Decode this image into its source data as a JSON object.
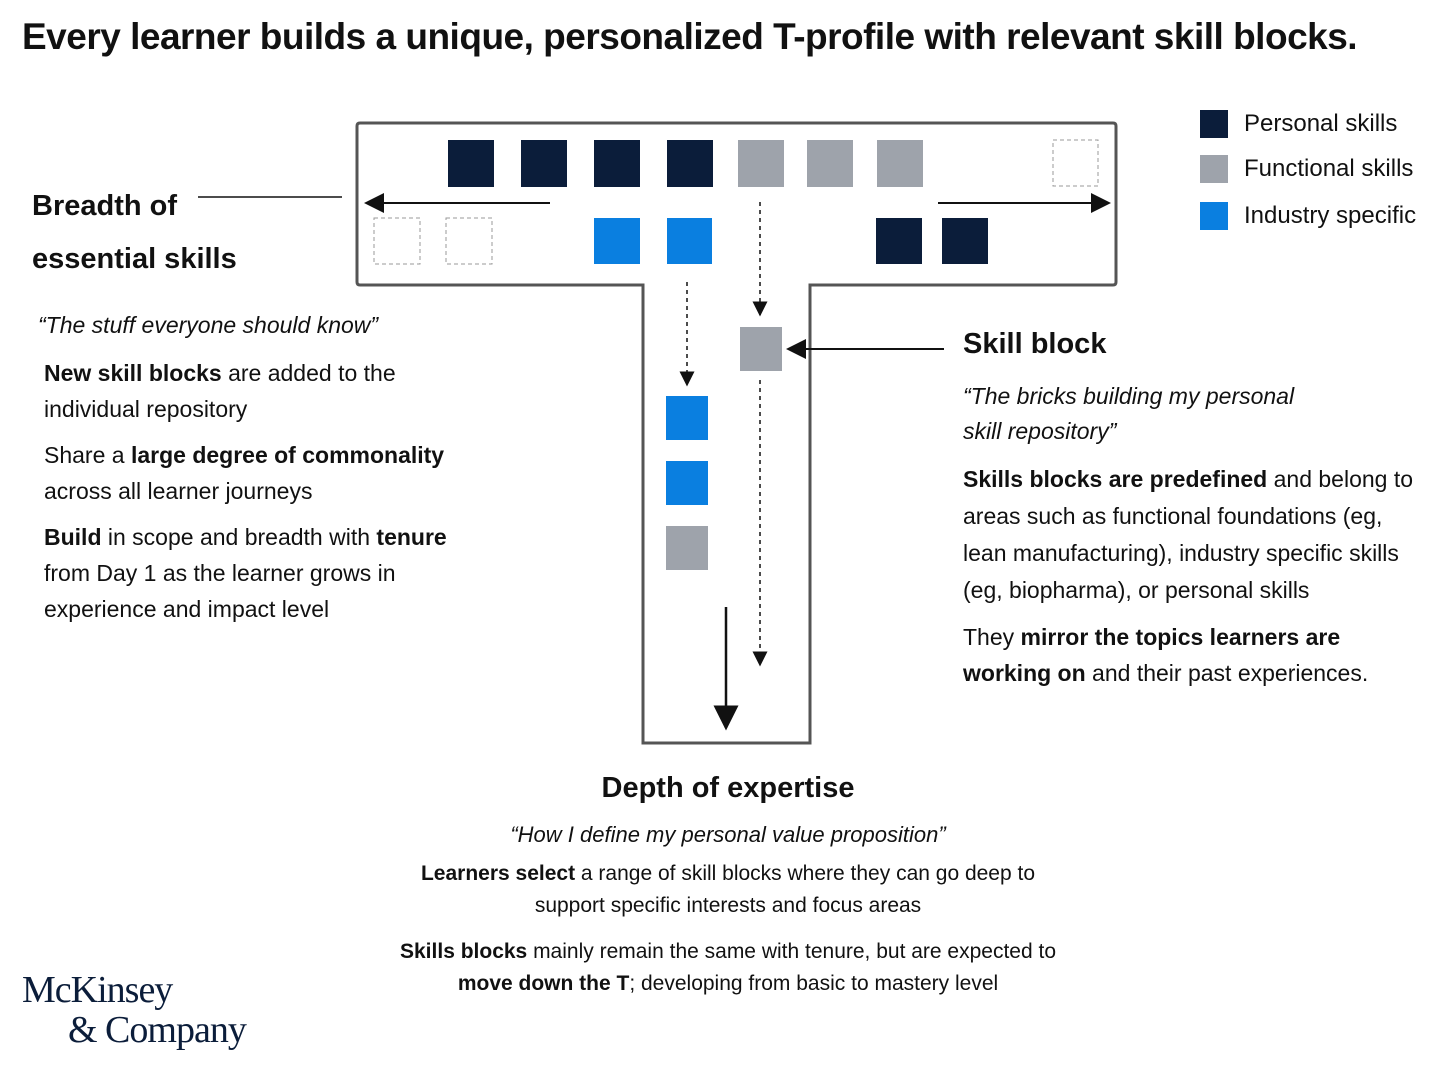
{
  "title": "Every learner builds a unique, personalized T-profile with relevant skill blocks.",
  "legend": [
    "Personal skills",
    "Functional skills",
    "Industry specific"
  ],
  "breadth": {
    "label": [
      "Breadth of",
      "essential skills"
    ],
    "quote": "“The stuff everyone should know”",
    "paragraphs": [
      [
        "New skill blocks",
        " are added to the individual repository"
      ],
      [
        "Share a ",
        "large degree of commonality",
        " across all learner journeys"
      ],
      [
        "Build",
        " in scope and breadth with ",
        "tenure",
        " from Day 1 as the learner grows in experience and impact level"
      ]
    ]
  },
  "skill_block": {
    "label": "Skill block",
    "quote": "“The bricks building my personal skill repository”",
    "paragraphs": [
      [
        "Skills blocks are predefined",
        " and belong to areas such as functional foundations (eg, lean manufacturing), industry specific skills (eg, biopharma), or personal skills"
      ],
      [
        "They ",
        "mirror the topics learners are working on",
        " and their past experiences."
      ]
    ]
  },
  "depth": {
    "label": "Depth of expertise",
    "quote": "“How I define my personal value proposition”",
    "paragraphs": [
      [
        "Learners select",
        " a range of skill blocks where they can go deep to support specific interests and focus areas"
      ],
      [
        "Skills blocks",
        " mainly remain the same with tenure, but are expected to ",
        "move down the T",
        "; developing from basic to mastery level"
      ]
    ]
  },
  "logo": [
    "McKinsey",
    "& Company"
  ]
}
